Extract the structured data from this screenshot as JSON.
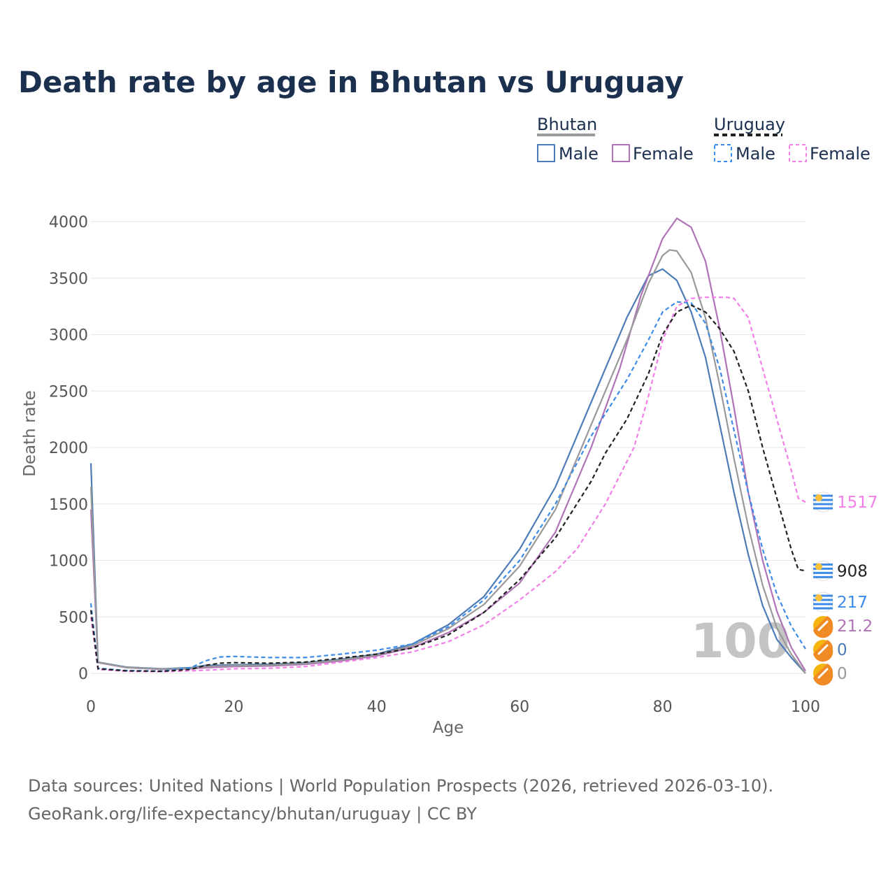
{
  "chart_data": {
    "type": "line",
    "title": "Death rate by age in Bhutan vs Uruguay",
    "xlabel": "Age",
    "ylabel": "Death rate",
    "xlim": [
      0,
      100
    ],
    "ylim": [
      0,
      4000
    ],
    "xticks": [
      0,
      20,
      40,
      60,
      80,
      100
    ],
    "yticks": [
      0,
      500,
      1000,
      1500,
      2000,
      2500,
      3000,
      3500,
      4000
    ],
    "watermark": "100",
    "legend": {
      "groups": [
        {
          "country": "Bhutan",
          "style": "solid",
          "color": "#999999",
          "items": [
            {
              "label": "Male",
              "color": "#4c7bb5"
            },
            {
              "label": "Female",
              "color": "#b173b7"
            }
          ]
        },
        {
          "country": "Uruguay",
          "style": "dashed",
          "color": "#222222",
          "items": [
            {
              "label": "Male",
              "color": "#3d8be8"
            },
            {
              "label": "Female",
              "color": "#f27ee8"
            }
          ]
        }
      ]
    },
    "series": [
      {
        "name": "Bhutan Male",
        "country": "Bhutan",
        "color": "#4c7bb5",
        "dash": false,
        "end_label": "0",
        "end_label_value": 0,
        "points": [
          [
            0,
            1860
          ],
          [
            1,
            100
          ],
          [
            5,
            55
          ],
          [
            10,
            40
          ],
          [
            14,
            50
          ],
          [
            16,
            70
          ],
          [
            20,
            75
          ],
          [
            25,
            80
          ],
          [
            30,
            95
          ],
          [
            35,
            125
          ],
          [
            40,
            170
          ],
          [
            45,
            260
          ],
          [
            50,
            430
          ],
          [
            55,
            680
          ],
          [
            60,
            1100
          ],
          [
            65,
            1650
          ],
          [
            70,
            2400
          ],
          [
            75,
            3150
          ],
          [
            78,
            3520
          ],
          [
            80,
            3580
          ],
          [
            82,
            3480
          ],
          [
            84,
            3200
          ],
          [
            86,
            2800
          ],
          [
            88,
            2200
          ],
          [
            90,
            1600
          ],
          [
            92,
            1050
          ],
          [
            94,
            600
          ],
          [
            96,
            300
          ],
          [
            98,
            140
          ],
          [
            100,
            0
          ]
        ]
      },
      {
        "name": "Bhutan Female",
        "country": "Bhutan",
        "color": "#b173b7",
        "dash": false,
        "end_label": "21.2",
        "end_label_value": 21.2,
        "points": [
          [
            0,
            1450
          ],
          [
            1,
            95
          ],
          [
            5,
            50
          ],
          [
            10,
            35
          ],
          [
            14,
            40
          ],
          [
            16,
            50
          ],
          [
            20,
            60
          ],
          [
            25,
            65
          ],
          [
            30,
            80
          ],
          [
            35,
            110
          ],
          [
            40,
            155
          ],
          [
            45,
            230
          ],
          [
            50,
            360
          ],
          [
            55,
            540
          ],
          [
            60,
            800
          ],
          [
            65,
            1250
          ],
          [
            70,
            2000
          ],
          [
            74,
            2700
          ],
          [
            77,
            3350
          ],
          [
            80,
            3850
          ],
          [
            82,
            4030
          ],
          [
            84,
            3950
          ],
          [
            86,
            3650
          ],
          [
            88,
            3050
          ],
          [
            90,
            2350
          ],
          [
            92,
            1600
          ],
          [
            94,
            1000
          ],
          [
            96,
            550
          ],
          [
            98,
            230
          ],
          [
            100,
            21.2
          ]
        ]
      },
      {
        "name": "Bhutan Total",
        "country": "Bhutan",
        "color": "#999999",
        "dash": false,
        "end_label": "0",
        "end_label_value": 0,
        "points": [
          [
            0,
            1650
          ],
          [
            1,
            98
          ],
          [
            5,
            52
          ],
          [
            10,
            38
          ],
          [
            14,
            45
          ],
          [
            16,
            60
          ],
          [
            20,
            68
          ],
          [
            25,
            72
          ],
          [
            30,
            88
          ],
          [
            35,
            118
          ],
          [
            40,
            162
          ],
          [
            45,
            245
          ],
          [
            50,
            395
          ],
          [
            55,
            610
          ],
          [
            60,
            950
          ],
          [
            65,
            1450
          ],
          [
            70,
            2200
          ],
          [
            75,
            2950
          ],
          [
            78,
            3450
          ],
          [
            80,
            3700
          ],
          [
            81,
            3750
          ],
          [
            82,
            3740
          ],
          [
            84,
            3550
          ],
          [
            86,
            3150
          ],
          [
            88,
            2550
          ],
          [
            90,
            1900
          ],
          [
            92,
            1300
          ],
          [
            94,
            780
          ],
          [
            96,
            400
          ],
          [
            98,
            170
          ],
          [
            100,
            0
          ]
        ]
      },
      {
        "name": "Uruguay Male",
        "country": "Uruguay",
        "color": "#3d8be8",
        "dash": true,
        "end_label": "217",
        "end_label_value": 217,
        "points": [
          [
            0,
            620
          ],
          [
            1,
            45
          ],
          [
            5,
            25
          ],
          [
            10,
            20
          ],
          [
            14,
            50
          ],
          [
            16,
            110
          ],
          [
            18,
            145
          ],
          [
            20,
            150
          ],
          [
            25,
            140
          ],
          [
            30,
            140
          ],
          [
            35,
            170
          ],
          [
            40,
            205
          ],
          [
            45,
            260
          ],
          [
            50,
            410
          ],
          [
            55,
            650
          ],
          [
            60,
            1000
          ],
          [
            65,
            1500
          ],
          [
            70,
            2100
          ],
          [
            75,
            2600
          ],
          [
            78,
            2950
          ],
          [
            80,
            3200
          ],
          [
            82,
            3290
          ],
          [
            84,
            3280
          ],
          [
            86,
            3100
          ],
          [
            88,
            2700
          ],
          [
            90,
            2150
          ],
          [
            92,
            1600
          ],
          [
            94,
            1100
          ],
          [
            96,
            700
          ],
          [
            98,
            420
          ],
          [
            100,
            217
          ]
        ]
      },
      {
        "name": "Uruguay Female",
        "country": "Uruguay",
        "color": "#f27ee8",
        "dash": true,
        "end_label": "1517",
        "end_label_value": 1517,
        "points": [
          [
            0,
            500
          ],
          [
            1,
            35
          ],
          [
            5,
            18
          ],
          [
            10,
            15
          ],
          [
            15,
            25
          ],
          [
            20,
            40
          ],
          [
            25,
            45
          ],
          [
            30,
            60
          ],
          [
            35,
            100
          ],
          [
            40,
            140
          ],
          [
            45,
            190
          ],
          [
            50,
            280
          ],
          [
            55,
            430
          ],
          [
            60,
            650
          ],
          [
            65,
            900
          ],
          [
            68,
            1100
          ],
          [
            72,
            1500
          ],
          [
            76,
            2000
          ],
          [
            78,
            2450
          ],
          [
            80,
            2950
          ],
          [
            82,
            3250
          ],
          [
            84,
            3320
          ],
          [
            86,
            3330
          ],
          [
            88,
            3330
          ],
          [
            89,
            3330
          ],
          [
            90,
            3320
          ],
          [
            92,
            3150
          ],
          [
            94,
            2700
          ],
          [
            96,
            2250
          ],
          [
            98,
            1800
          ],
          [
            99,
            1550
          ],
          [
            100,
            1517
          ]
        ]
      },
      {
        "name": "Uruguay Total",
        "country": "Uruguay",
        "color": "#222222",
        "dash": true,
        "end_label": "908",
        "end_label_value": 908,
        "points": [
          [
            0,
            560
          ],
          [
            1,
            40
          ],
          [
            5,
            22
          ],
          [
            10,
            18
          ],
          [
            14,
            35
          ],
          [
            16,
            70
          ],
          [
            18,
            90
          ],
          [
            20,
            95
          ],
          [
            25,
            90
          ],
          [
            30,
            100
          ],
          [
            35,
            135
          ],
          [
            40,
            170
          ],
          [
            45,
            225
          ],
          [
            50,
            340
          ],
          [
            55,
            540
          ],
          [
            60,
            830
          ],
          [
            65,
            1200
          ],
          [
            70,
            1700
          ],
          [
            72,
            1950
          ],
          [
            75,
            2250
          ],
          [
            78,
            2650
          ],
          [
            80,
            3000
          ],
          [
            82,
            3200
          ],
          [
            84,
            3260
          ],
          [
            86,
            3200
          ],
          [
            88,
            3050
          ],
          [
            90,
            2850
          ],
          [
            92,
            2500
          ],
          [
            94,
            2000
          ],
          [
            96,
            1550
          ],
          [
            98,
            1100
          ],
          [
            99,
            920
          ],
          [
            100,
            908
          ]
        ]
      }
    ]
  }
}
